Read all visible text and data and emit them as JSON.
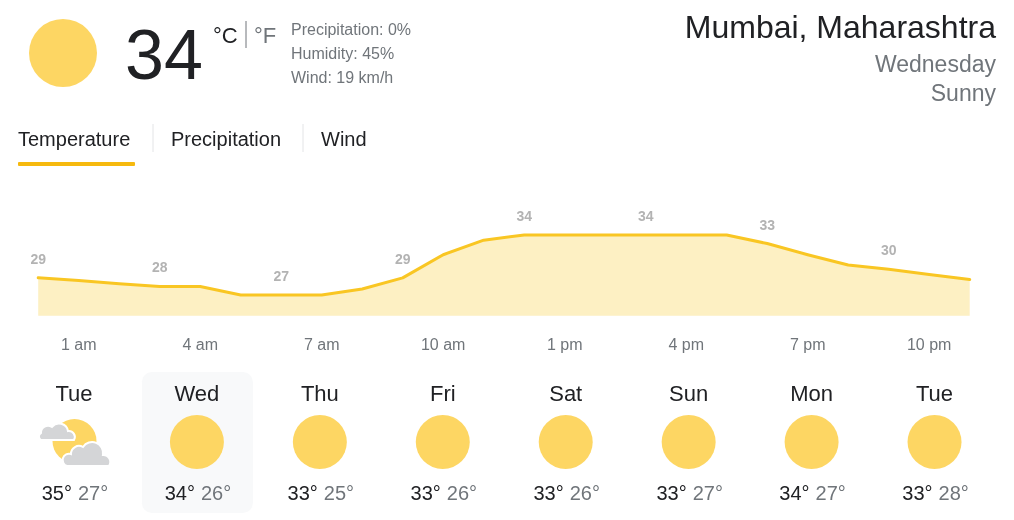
{
  "chart_data": [
    {
      "type": "other",
      "title": "Mumbai, Maharashtra",
      "subtitle": "Wednesday",
      "annotations": [
        "34",
        "°C",
        "°F",
        "Precipitation: 0%",
        "Humidity: 45%",
        "Wind: 19 km/h",
        "Sunny",
        "Temperature",
        "Precipitation",
        "Wind"
      ]
    },
    {
      "type": "area",
      "categories": [
        null,
        "1 am",
        null,
        null,
        "4 am",
        null,
        null,
        "7 am",
        null,
        null,
        "10 am",
        null,
        null,
        "1 pm",
        null,
        null,
        "4 pm",
        null,
        null,
        "7 pm",
        null,
        null,
        "10 pm",
        null
      ],
      "values": [
        29,
        28.7,
        28.3,
        28,
        28,
        27,
        27,
        27,
        27.7,
        29,
        31.7,
        33.4,
        34,
        34,
        34,
        34,
        34,
        34,
        33,
        31.7,
        30.5,
        30,
        29.4,
        28.8
      ],
      "value_labels": [
        "29",
        null,
        null,
        "28",
        null,
        null,
        "27",
        null,
        null,
        "29",
        null,
        null,
        "34",
        null,
        null,
        "34",
        null,
        null,
        "33",
        null,
        null,
        "30",
        null,
        null
      ],
      "color": "#f9c623",
      "tick_labels": "x"
    },
    {
      "type": "other",
      "categories": [
        "Tue",
        "Wed",
        "Thu",
        "Fri",
        "Sat",
        "Sun",
        "Mon",
        "Tue"
      ],
      "annotations": [
        "35°",
        "27°",
        "34°",
        "26°",
        "33°",
        "25°",
        "33°",
        "26°",
        "33°",
        "26°",
        "33°",
        "27°",
        "34°",
        "27°",
        "33°",
        "28°"
      ]
    }
  ]
}
